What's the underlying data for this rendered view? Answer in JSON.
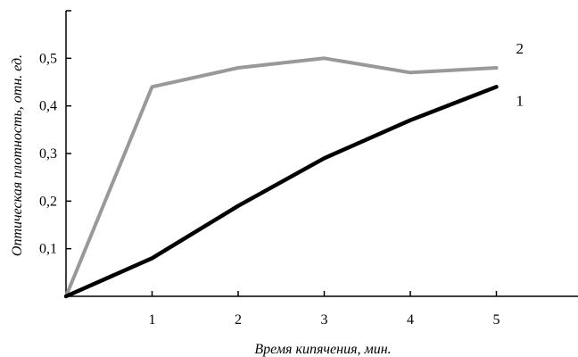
{
  "chart_data": {
    "type": "line",
    "xlabel": "Время кипячения, мин.",
    "ylabel": "Оптическая плотность, отн. ед.",
    "xlim": [
      0,
      6
    ],
    "ylim": [
      0,
      0.6
    ],
    "x_ticks": [
      "1",
      "2",
      "3",
      "4",
      "5"
    ],
    "y_ticks": [
      "0,1",
      "0,2",
      "0,3",
      "0,4",
      "0,5"
    ],
    "grid": false,
    "series": [
      {
        "name": "1",
        "color": "#000000",
        "x": [
          0,
          1,
          2,
          3,
          4,
          5
        ],
        "y": [
          0,
          0.08,
          0.19,
          0.29,
          0.37,
          0.44
        ]
      },
      {
        "name": "2",
        "color": "#999999",
        "x": [
          0,
          1,
          2,
          3,
          4,
          5
        ],
        "y": [
          0,
          0.44,
          0.48,
          0.5,
          0.47,
          0.48
        ]
      }
    ]
  }
}
